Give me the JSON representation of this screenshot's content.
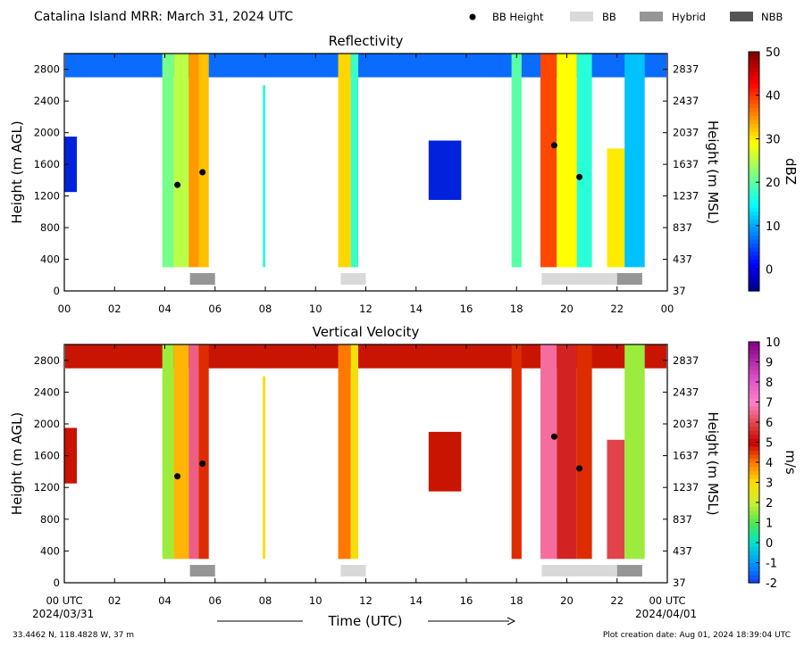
{
  "figure": {
    "title": "Catalina Island MRR:  March 31, 2024 UTC",
    "legend": [
      {
        "label": "BB Height",
        "kind": "dot",
        "color": "#000000"
      },
      {
        "label": "BB",
        "kind": "box",
        "color": "#d9d9d9"
      },
      {
        "label": "Hybrid",
        "kind": "box",
        "color": "#969696"
      },
      {
        "label": "NBB",
        "kind": "box",
        "color": "#555555"
      }
    ],
    "xaxis_label": "Time (UTC)",
    "start_date": "2024/03/31",
    "end_date": "2024/04/01",
    "location": "33.4462 N, 118.4828 W, 37 m",
    "creation": "Plot creation date: Aug 01, 2024 18:39:04 UTC"
  },
  "chart_data": [
    {
      "type": "heatmap",
      "title": "Reflectivity",
      "ylabel": "Height (m AGL)",
      "ylabel_right": "Height (m MSL)",
      "xlim": [
        0,
        24
      ],
      "ylim": [
        0,
        3000
      ],
      "x_ticks": [
        "00",
        "02",
        "04",
        "06",
        "08",
        "10",
        "12",
        "14",
        "16",
        "18",
        "20",
        "22",
        "00"
      ],
      "y_ticks": [
        0,
        400,
        800,
        1200,
        1600,
        2000,
        2400,
        2800
      ],
      "y_ticks_right": [
        37,
        437,
        837,
        1237,
        1637,
        2037,
        2437,
        2837
      ],
      "colorbar": {
        "label": "dBZ",
        "min": -5,
        "max": 50,
        "ticks": [
          0,
          10,
          20,
          30,
          40,
          50
        ],
        "colormap": "jet"
      },
      "bb_height_points": [
        {
          "x": 4.5,
          "y": 1340
        },
        {
          "x": 5.5,
          "y": 1500
        },
        {
          "x": 19.5,
          "y": 1840
        },
        {
          "x": 20.5,
          "y": 1440
        }
      ],
      "bb_type_bars": [
        {
          "start": 5.0,
          "end": 6.0,
          "type": "Hybrid"
        },
        {
          "start": 11.0,
          "end": 12.0,
          "type": "BB"
        },
        {
          "start": 19.0,
          "end": 22.0,
          "type": "BB"
        },
        {
          "start": 22.0,
          "end": 23.0,
          "type": "Hybrid"
        }
      ]
    },
    {
      "type": "heatmap",
      "title": "Vertical Velocity",
      "ylabel": "Height (m AGL)",
      "ylabel_right": "Height (m MSL)",
      "xlim": [
        0,
        24
      ],
      "ylim": [
        0,
        3000
      ],
      "x_ticks": [
        "00 UTC",
        "02",
        "04",
        "06",
        "08",
        "10",
        "12",
        "14",
        "16",
        "18",
        "20",
        "22",
        "00 UTC"
      ],
      "y_ticks": [
        0,
        400,
        800,
        1200,
        1600,
        2000,
        2400,
        2800
      ],
      "y_ticks_right": [
        37,
        437,
        837,
        1237,
        1637,
        2037,
        2437,
        2837
      ],
      "colorbar": {
        "label": "m/s",
        "min": -2,
        "max": 10,
        "ticks": [
          -2,
          -1,
          0,
          1,
          2,
          3,
          4,
          5,
          6,
          7,
          8,
          9,
          10
        ],
        "colormap": "blue-green-yellow-red-pink-purple"
      },
      "bb_height_points": [
        {
          "x": 4.5,
          "y": 1340
        },
        {
          "x": 5.5,
          "y": 1500
        },
        {
          "x": 19.5,
          "y": 1840
        },
        {
          "x": 20.5,
          "y": 1440
        }
      ],
      "bb_type_bars": [
        {
          "start": 5.0,
          "end": 6.0,
          "type": "Hybrid"
        },
        {
          "start": 11.0,
          "end": 12.0,
          "type": "BB"
        },
        {
          "start": 19.0,
          "end": 22.0,
          "type": "BB"
        },
        {
          "start": 22.0,
          "end": 23.0,
          "type": "Hybrid"
        }
      ]
    }
  ]
}
